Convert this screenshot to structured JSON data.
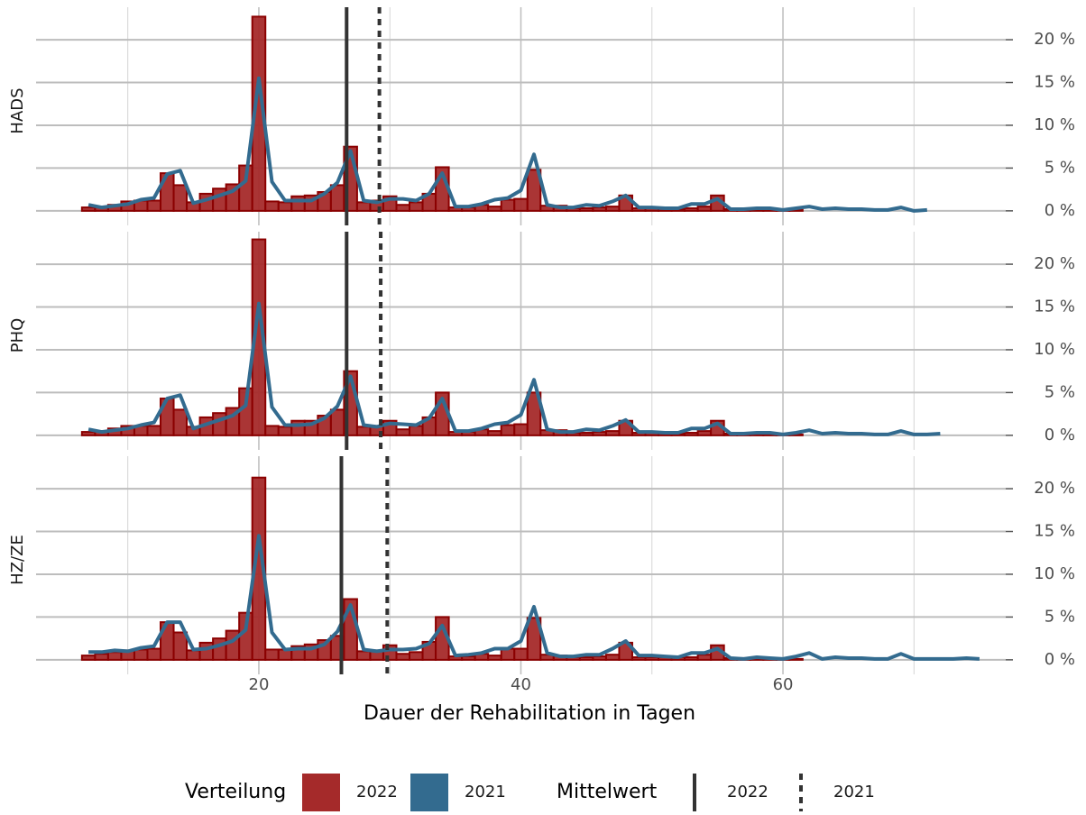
{
  "chart_data": {
    "type": "bar",
    "x_label": "Dauer der Rehabilitation in Tagen",
    "xlim": [
      3,
      77
    ],
    "xticks": [
      20,
      40,
      60
    ],
    "xminor": [
      10,
      30,
      50,
      70
    ],
    "ylim": [
      -1.7,
      23.8
    ],
    "yticks": [
      {
        "value": 0,
        "label": "0 %"
      },
      {
        "value": 5,
        "label": "5 %"
      },
      {
        "value": 10,
        "label": "10 %"
      },
      {
        "value": 15,
        "label": "15 %"
      },
      {
        "value": 20,
        "label": "20 %"
      }
    ],
    "grid": true,
    "legend": {
      "fill_title": "Verteilung",
      "line_title": "Mittelwert",
      "fills": [
        {
          "name": "2022",
          "color": "#a52a2a"
        },
        {
          "name": "2021",
          "color": "#336b8f"
        }
      ],
      "lines": [
        {
          "name": "2022",
          "dash": "solid"
        },
        {
          "name": "2021",
          "dash": "dotted"
        }
      ]
    },
    "facets": [
      {
        "label": "HADS",
        "means": [
          26.7,
          29.2
        ],
        "series": [
          {
            "name": "2022",
            "color": "#a52a2a",
            "x": [
              7,
              8,
              9,
              10,
              11,
              12,
              13,
              14,
              15,
              16,
              17,
              18,
              19,
              20,
              21,
              22,
              23,
              24,
              25,
              26,
              27,
              28,
              29,
              30,
              31,
              32,
              33,
              34,
              35,
              36,
              37,
              38,
              39,
              40,
              41,
              42,
              43,
              44,
              45,
              46,
              47,
              48,
              49,
              50,
              51,
              52,
              53,
              54,
              55,
              56,
              57,
              58,
              59,
              60,
              61
            ],
            "values": [
              0.4,
              0.5,
              0.7,
              1.1,
              1.2,
              1.2,
              4.4,
              3.0,
              1.0,
              2.0,
              2.6,
              3.1,
              5.3,
              22.7,
              1.1,
              1.0,
              1.7,
              1.8,
              2.2,
              3.0,
              7.5,
              1.0,
              1.2,
              1.7,
              0.7,
              1.0,
              2.0,
              5.1,
              0.4,
              0.4,
              0.7,
              0.5,
              1.3,
              1.4,
              4.8,
              0.6,
              0.6,
              0.3,
              0.3,
              0.4,
              0.5,
              1.8,
              0.3,
              0.3,
              0.3,
              0.2,
              0.3,
              0.5,
              1.8,
              0.2,
              0.2,
              0.2,
              0.2,
              0.1,
              0.1
            ]
          },
          {
            "name": "2021",
            "color": "#336b8f",
            "x": [
              7,
              8,
              9,
              10,
              11,
              12,
              13,
              14,
              15,
              16,
              17,
              18,
              19,
              20,
              21,
              22,
              23,
              24,
              25,
              26,
              27,
              28,
              29,
              30,
              31,
              32,
              33,
              34,
              35,
              36,
              37,
              38,
              39,
              40,
              41,
              42,
              43,
              44,
              45,
              46,
              47,
              48,
              49,
              50,
              51,
              52,
              53,
              54,
              55,
              56,
              57,
              58,
              59,
              60,
              61,
              62,
              63,
              64,
              65,
              66,
              67,
              68,
              69,
              70,
              71
            ],
            "values": [
              0.7,
              0.4,
              0.6,
              0.8,
              1.3,
              1.5,
              4.3,
              4.7,
              0.9,
              1.3,
              1.8,
              2.3,
              3.5,
              15.5,
              3.4,
              1.2,
              1.2,
              1.2,
              2.0,
              3.3,
              7.0,
              1.2,
              1.0,
              1.4,
              1.4,
              1.2,
              2.0,
              4.4,
              0.5,
              0.5,
              0.8,
              1.3,
              1.5,
              2.4,
              6.6,
              0.7,
              0.4,
              0.4,
              0.7,
              0.6,
              1.1,
              1.8,
              0.4,
              0.4,
              0.3,
              0.3,
              0.8,
              0.8,
              1.4,
              0.2,
              0.2,
              0.3,
              0.3,
              0.1,
              0.3,
              0.5,
              0.2,
              0.3,
              0.2,
              0.2,
              0.1,
              0.1,
              0.4,
              0.0,
              0.1
            ]
          }
        ]
      },
      {
        "label": "PHQ",
        "means": [
          26.7,
          29.3
        ],
        "series": [
          {
            "name": "2022",
            "color": "#a52a2a",
            "x": [
              7,
              8,
              9,
              10,
              11,
              12,
              13,
              14,
              15,
              16,
              17,
              18,
              19,
              20,
              21,
              22,
              23,
              24,
              25,
              26,
              27,
              28,
              29,
              30,
              31,
              32,
              33,
              34,
              35,
              36,
              37,
              38,
              39,
              40,
              41,
              42,
              43,
              44,
              45,
              46,
              47,
              48,
              49,
              50,
              51,
              52,
              53,
              54,
              55,
              56,
              57,
              58,
              59,
              60,
              61
            ],
            "values": [
              0.4,
              0.5,
              0.8,
              1.1,
              1.1,
              1.1,
              4.3,
              3.0,
              1.0,
              2.1,
              2.6,
              3.2,
              5.5,
              22.9,
              1.1,
              1.0,
              1.7,
              1.7,
              2.3,
              3.0,
              7.5,
              1.0,
              1.1,
              1.7,
              0.7,
              1.1,
              2.1,
              5.0,
              0.4,
              0.4,
              0.7,
              0.5,
              1.2,
              1.3,
              5.0,
              0.6,
              0.6,
              0.3,
              0.3,
              0.4,
              0.5,
              1.7,
              0.3,
              0.3,
              0.3,
              0.2,
              0.3,
              0.5,
              1.7,
              0.2,
              0.2,
              0.2,
              0.2,
              0.1,
              0.1
            ]
          },
          {
            "name": "2021",
            "color": "#336b8f",
            "x": [
              7,
              8,
              9,
              10,
              11,
              12,
              13,
              14,
              15,
              16,
              17,
              18,
              19,
              20,
              21,
              22,
              23,
              24,
              25,
              26,
              27,
              28,
              29,
              30,
              31,
              32,
              33,
              34,
              35,
              36,
              37,
              38,
              39,
              40,
              41,
              42,
              43,
              44,
              45,
              46,
              47,
              48,
              49,
              50,
              51,
              52,
              53,
              54,
              55,
              56,
              57,
              58,
              59,
              60,
              61,
              62,
              63,
              64,
              65,
              66,
              67,
              68,
              69,
              70,
              71,
              72
            ],
            "values": [
              0.7,
              0.4,
              0.6,
              0.8,
              1.2,
              1.5,
              4.3,
              4.7,
              0.8,
              1.3,
              1.8,
              2.3,
              3.5,
              15.4,
              3.3,
              1.2,
              1.2,
              1.3,
              2.0,
              3.4,
              6.9,
              1.2,
              1.0,
              1.4,
              1.3,
              1.2,
              2.0,
              4.3,
              0.5,
              0.5,
              0.8,
              1.3,
              1.5,
              2.4,
              6.5,
              0.7,
              0.4,
              0.4,
              0.7,
              0.6,
              1.1,
              1.8,
              0.4,
              0.4,
              0.3,
              0.3,
              0.8,
              0.8,
              1.4,
              0.2,
              0.2,
              0.3,
              0.3,
              0.1,
              0.3,
              0.6,
              0.2,
              0.3,
              0.2,
              0.2,
              0.1,
              0.1,
              0.5,
              0.1,
              0.1,
              0.2
            ]
          }
        ]
      },
      {
        "label": "HZ/ZE",
        "means": [
          26.3,
          29.8
        ],
        "series": [
          {
            "name": "2022",
            "color": "#a52a2a",
            "x": [
              7,
              8,
              9,
              10,
              11,
              12,
              13,
              14,
              15,
              16,
              17,
              18,
              19,
              20,
              21,
              22,
              23,
              24,
              25,
              26,
              27,
              28,
              29,
              30,
              31,
              32,
              33,
              34,
              35,
              36,
              37,
              38,
              39,
              40,
              41,
              42,
              43,
              44,
              45,
              46,
              47,
              48,
              49,
              50,
              51,
              52,
              53,
              54,
              55,
              56,
              57,
              58,
              59,
              60,
              61
            ],
            "values": [
              0.5,
              0.7,
              0.9,
              1.1,
              1.2,
              1.3,
              4.4,
              3.2,
              1.1,
              2.0,
              2.5,
              3.4,
              5.5,
              21.3,
              1.2,
              1.2,
              1.6,
              1.8,
              2.3,
              2.8,
              7.1,
              1.0,
              1.1,
              1.7,
              0.7,
              0.9,
              2.1,
              5.0,
              0.4,
              0.4,
              0.7,
              0.5,
              1.3,
              1.3,
              4.9,
              0.6,
              0.5,
              0.3,
              0.3,
              0.4,
              0.6,
              2.0,
              0.3,
              0.3,
              0.3,
              0.3,
              0.3,
              0.6,
              1.7,
              0.2,
              0.2,
              0.2,
              0.2,
              0.1,
              0.1
            ]
          },
          {
            "name": "2021",
            "color": "#336b8f",
            "x": [
              7,
              8,
              9,
              10,
              11,
              12,
              13,
              14,
              15,
              16,
              17,
              18,
              19,
              20,
              21,
              22,
              23,
              24,
              25,
              26,
              27,
              28,
              29,
              30,
              31,
              32,
              33,
              34,
              35,
              36,
              37,
              38,
              39,
              40,
              41,
              42,
              43,
              44,
              45,
              46,
              47,
              48,
              49,
              50,
              51,
              52,
              53,
              54,
              55,
              56,
              57,
              58,
              59,
              60,
              61,
              62,
              63,
              64,
              65,
              66,
              67,
              68,
              69,
              70,
              71,
              72,
              73,
              74,
              75
            ],
            "values": [
              0.9,
              0.9,
              1.1,
              1.0,
              1.4,
              1.6,
              4.4,
              4.4,
              1.2,
              1.3,
              1.7,
              2.2,
              3.5,
              14.5,
              3.2,
              1.2,
              1.3,
              1.3,
              1.8,
              3.3,
              6.4,
              1.2,
              1.0,
              1.2,
              1.2,
              1.3,
              1.9,
              4.0,
              0.5,
              0.6,
              0.8,
              1.3,
              1.3,
              2.2,
              6.2,
              0.8,
              0.4,
              0.4,
              0.6,
              0.6,
              1.3,
              2.2,
              0.5,
              0.5,
              0.4,
              0.3,
              0.8,
              0.8,
              1.3,
              0.2,
              0.1,
              0.3,
              0.2,
              0.1,
              0.4,
              0.8,
              0.1,
              0.3,
              0.2,
              0.2,
              0.1,
              0.1,
              0.7,
              0.1,
              0.1,
              0.1,
              0.1,
              0.2,
              0.1
            ]
          }
        ]
      }
    ]
  }
}
